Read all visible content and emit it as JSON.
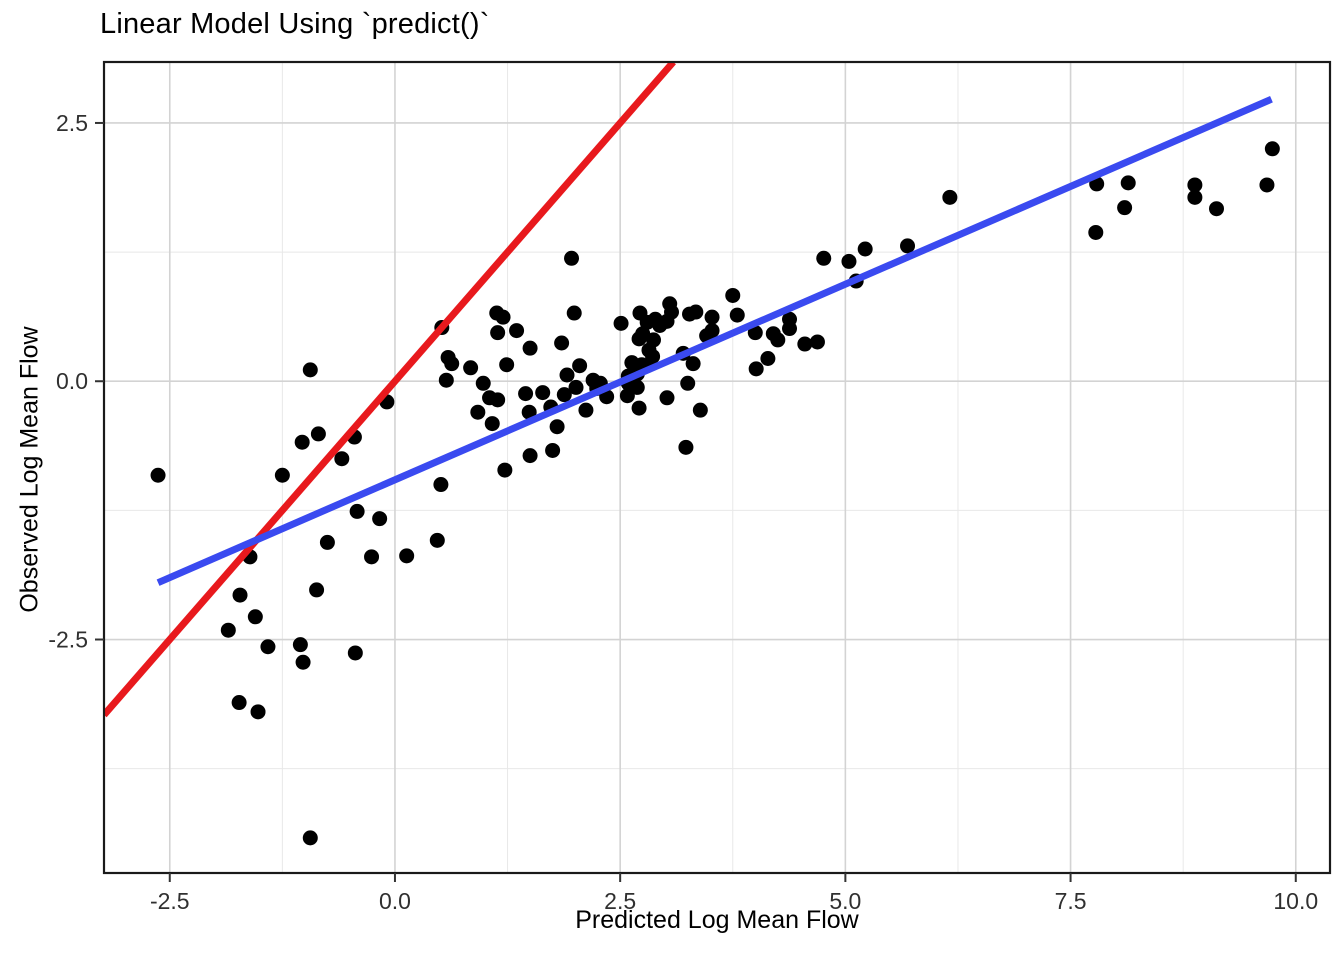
{
  "chart_data": {
    "type": "scatter",
    "title": "Linear Model Using `predict()`",
    "xlabel": "Predicted Log Mean Flow",
    "ylabel": "Observed Log Mean Flow",
    "legend": "none",
    "grid": "on",
    "x_axis": {
      "range": [
        -3.23,
        10.38
      ],
      "breaks": [
        -2.5,
        0,
        2.5,
        5,
        7.5,
        10
      ],
      "tick_labels": [
        "-2.5",
        "0.0",
        "2.5",
        "5.0",
        "7.5",
        "10.0"
      ],
      "minor_breaks": [
        -1.25,
        1.25,
        3.75,
        6.25,
        8.75
      ]
    },
    "y_axis": {
      "range": [
        -4.76,
        3.09
      ],
      "breaks": [
        -2.5,
        0,
        2.5
      ],
      "tick_labels": [
        "-2.5",
        "0.0",
        "2.5"
      ],
      "minor_breaks": [
        -3.75,
        -1.25,
        1.25
      ]
    },
    "point_style": {
      "color": "#000000",
      "radius": 7.5
    },
    "style": {
      "major_grid_color": "#D3D3D3",
      "minor_grid_color": "#E8E8E8",
      "panel_border_color": "#1A1A1A",
      "background": "#FFFFFF",
      "tick_color": "#333333"
    },
    "lines": [
      {
        "name": "identity-line",
        "color": "#E8191D",
        "width": 7,
        "slope": 1,
        "intercept": 0,
        "x1": -3.23,
        "y1": -3.23,
        "x2": 3.09,
        "y2": 3.09
      },
      {
        "name": "fit-line",
        "color": "#3A4AF0",
        "width": 7,
        "slope": 0.379,
        "intercept": -0.95,
        "x1": -2.63,
        "y1": -1.95,
        "x2": 9.73,
        "y2": 2.73
      }
    ],
    "points": [
      [
        -2.63,
        -0.91
      ],
      [
        -1.85,
        -2.41
      ],
      [
        -1.73,
        -3.11
      ],
      [
        -1.72,
        -2.07
      ],
      [
        -1.61,
        -1.7
      ],
      [
        -1.55,
        -2.28
      ],
      [
        -1.52,
        -3.2
      ],
      [
        -1.41,
        -2.57
      ],
      [
        -1.25,
        -0.91
      ],
      [
        -1.05,
        -2.55
      ],
      [
        -1.03,
        -0.59
      ],
      [
        -1.02,
        -2.72
      ],
      [
        -0.94,
        0.11
      ],
      [
        -0.94,
        -4.42
      ],
      [
        -0.87,
        -2.02
      ],
      [
        -0.85,
        -0.51
      ],
      [
        -0.75,
        -1.56
      ],
      [
        -0.59,
        -0.75
      ],
      [
        -0.45,
        -0.54
      ],
      [
        -0.44,
        -2.63
      ],
      [
        -0.42,
        -1.26
      ],
      [
        -0.26,
        -1.7
      ],
      [
        -0.17,
        -1.33
      ],
      [
        -0.09,
        -0.2
      ],
      [
        0.13,
        -1.69
      ],
      [
        0.47,
        -1.54
      ],
      [
        0.51,
        -1.0
      ],
      [
        0.52,
        0.52
      ],
      [
        0.57,
        0.01
      ],
      [
        0.59,
        0.23
      ],
      [
        0.63,
        0.17
      ],
      [
        0.84,
        0.13
      ],
      [
        0.92,
        -0.3
      ],
      [
        0.98,
        -0.02
      ],
      [
        1.05,
        -0.16
      ],
      [
        1.08,
        -0.41
      ],
      [
        1.13,
        0.66
      ],
      [
        1.14,
        0.47
      ],
      [
        1.14,
        -0.18
      ],
      [
        1.2,
        0.62
      ],
      [
        1.22,
        -0.86
      ],
      [
        1.24,
        0.16
      ],
      [
        1.35,
        0.49
      ],
      [
        1.45,
        -0.12
      ],
      [
        1.49,
        -0.3
      ],
      [
        1.5,
        0.32
      ],
      [
        1.5,
        -0.72
      ],
      [
        1.64,
        -0.11
      ],
      [
        1.73,
        -0.25
      ],
      [
        1.75,
        -0.67
      ],
      [
        1.8,
        -0.44
      ],
      [
        1.85,
        0.37
      ],
      [
        1.88,
        -0.13
      ],
      [
        1.91,
        0.06
      ],
      [
        1.96,
        1.19
      ],
      [
        1.99,
        0.66
      ],
      [
        2.01,
        -0.06
      ],
      [
        2.05,
        0.15
      ],
      [
        2.12,
        -0.28
      ],
      [
        2.2,
        0.01
      ],
      [
        2.24,
        -0.07
      ],
      [
        2.28,
        -0.02
      ],
      [
        2.35,
        -0.15
      ],
      [
        2.51,
        0.56
      ],
      [
        2.58,
        -0.14
      ],
      [
        2.59,
        0.05
      ],
      [
        2.59,
        -0.02
      ],
      [
        2.63,
        0.18
      ],
      [
        2.69,
        0.07
      ],
      [
        2.69,
        -0.06
      ],
      [
        2.71,
        0.41
      ],
      [
        2.71,
        -0.26
      ],
      [
        2.72,
        0.66
      ],
      [
        2.74,
        0.16
      ],
      [
        2.75,
        0.46
      ],
      [
        2.8,
        0.57
      ],
      [
        2.8,
        0.15
      ],
      [
        2.82,
        0.3
      ],
      [
        2.86,
        0.24
      ],
      [
        2.87,
        0.4
      ],
      [
        2.89,
        0.6
      ],
      [
        2.94,
        0.54
      ],
      [
        3.02,
        0.58
      ],
      [
        3.02,
        -0.16
      ],
      [
        3.05,
        0.75
      ],
      [
        3.07,
        0.67
      ],
      [
        3.2,
        0.27
      ],
      [
        3.23,
        -0.64
      ],
      [
        3.25,
        -0.02
      ],
      [
        3.27,
        0.65
      ],
      [
        3.31,
        0.17
      ],
      [
        3.34,
        0.67
      ],
      [
        3.39,
        -0.28
      ],
      [
        3.46,
        0.44
      ],
      [
        3.52,
        0.49
      ],
      [
        3.52,
        0.62
      ],
      [
        3.75,
        0.83
      ],
      [
        3.8,
        0.64
      ],
      [
        4.0,
        0.47
      ],
      [
        4.01,
        0.12
      ],
      [
        4.14,
        0.22
      ],
      [
        4.2,
        0.46
      ],
      [
        4.25,
        0.4
      ],
      [
        4.38,
        0.6
      ],
      [
        4.38,
        0.51
      ],
      [
        4.55,
        0.36
      ],
      [
        4.69,
        0.38
      ],
      [
        4.76,
        1.19
      ],
      [
        5.04,
        1.16
      ],
      [
        5.12,
        0.97
      ],
      [
        5.22,
        1.28
      ],
      [
        5.69,
        1.31
      ],
      [
        6.16,
        1.78
      ],
      [
        7.78,
        1.44
      ],
      [
        7.79,
        1.91
      ],
      [
        8.1,
        1.68
      ],
      [
        8.14,
        1.92
      ],
      [
        8.88,
        1.9
      ],
      [
        8.88,
        1.78
      ],
      [
        9.12,
        1.67
      ],
      [
        9.68,
        1.9
      ],
      [
        9.74,
        2.25
      ]
    ]
  }
}
